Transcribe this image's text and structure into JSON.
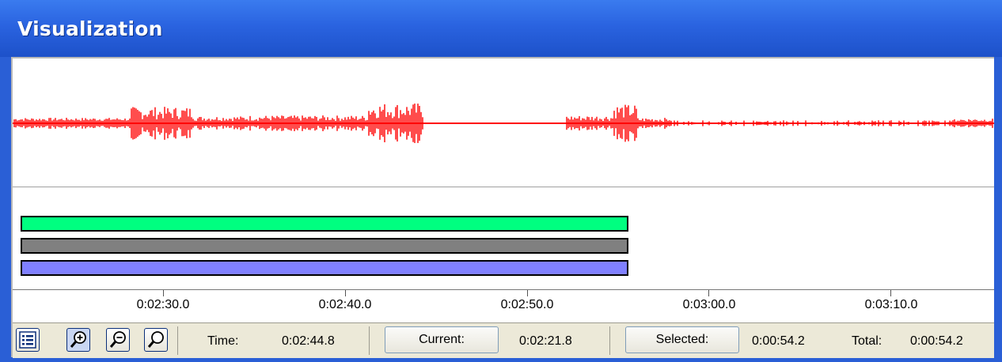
{
  "window": {
    "title": "Visualization"
  },
  "waveform": {
    "color": "#ff0000"
  },
  "tracks": [
    {
      "name": "track-green",
      "color": "#00ff80"
    },
    {
      "name": "track-gray",
      "color": "#808080"
    },
    {
      "name": "track-blue",
      "color": "#8080ff"
    }
  ],
  "ruler": {
    "ticks": [
      "0:02:30.0",
      "0:02:40.0",
      "0:02:50.0",
      "0:03:00.0",
      "0:03:10.0"
    ]
  },
  "status": {
    "icons": [
      "list-icon",
      "zoom-in-icon",
      "zoom-out-icon",
      "zoom-fit-icon"
    ],
    "time_label": "Time:",
    "time_value": "0:02:44.8",
    "current_label": "Current:",
    "current_value": "0:02:21.8",
    "selected_label": "Selected:",
    "selected_value": "0:00:54.2",
    "total_label": "Total:",
    "total_value": "0:00:54.2"
  }
}
